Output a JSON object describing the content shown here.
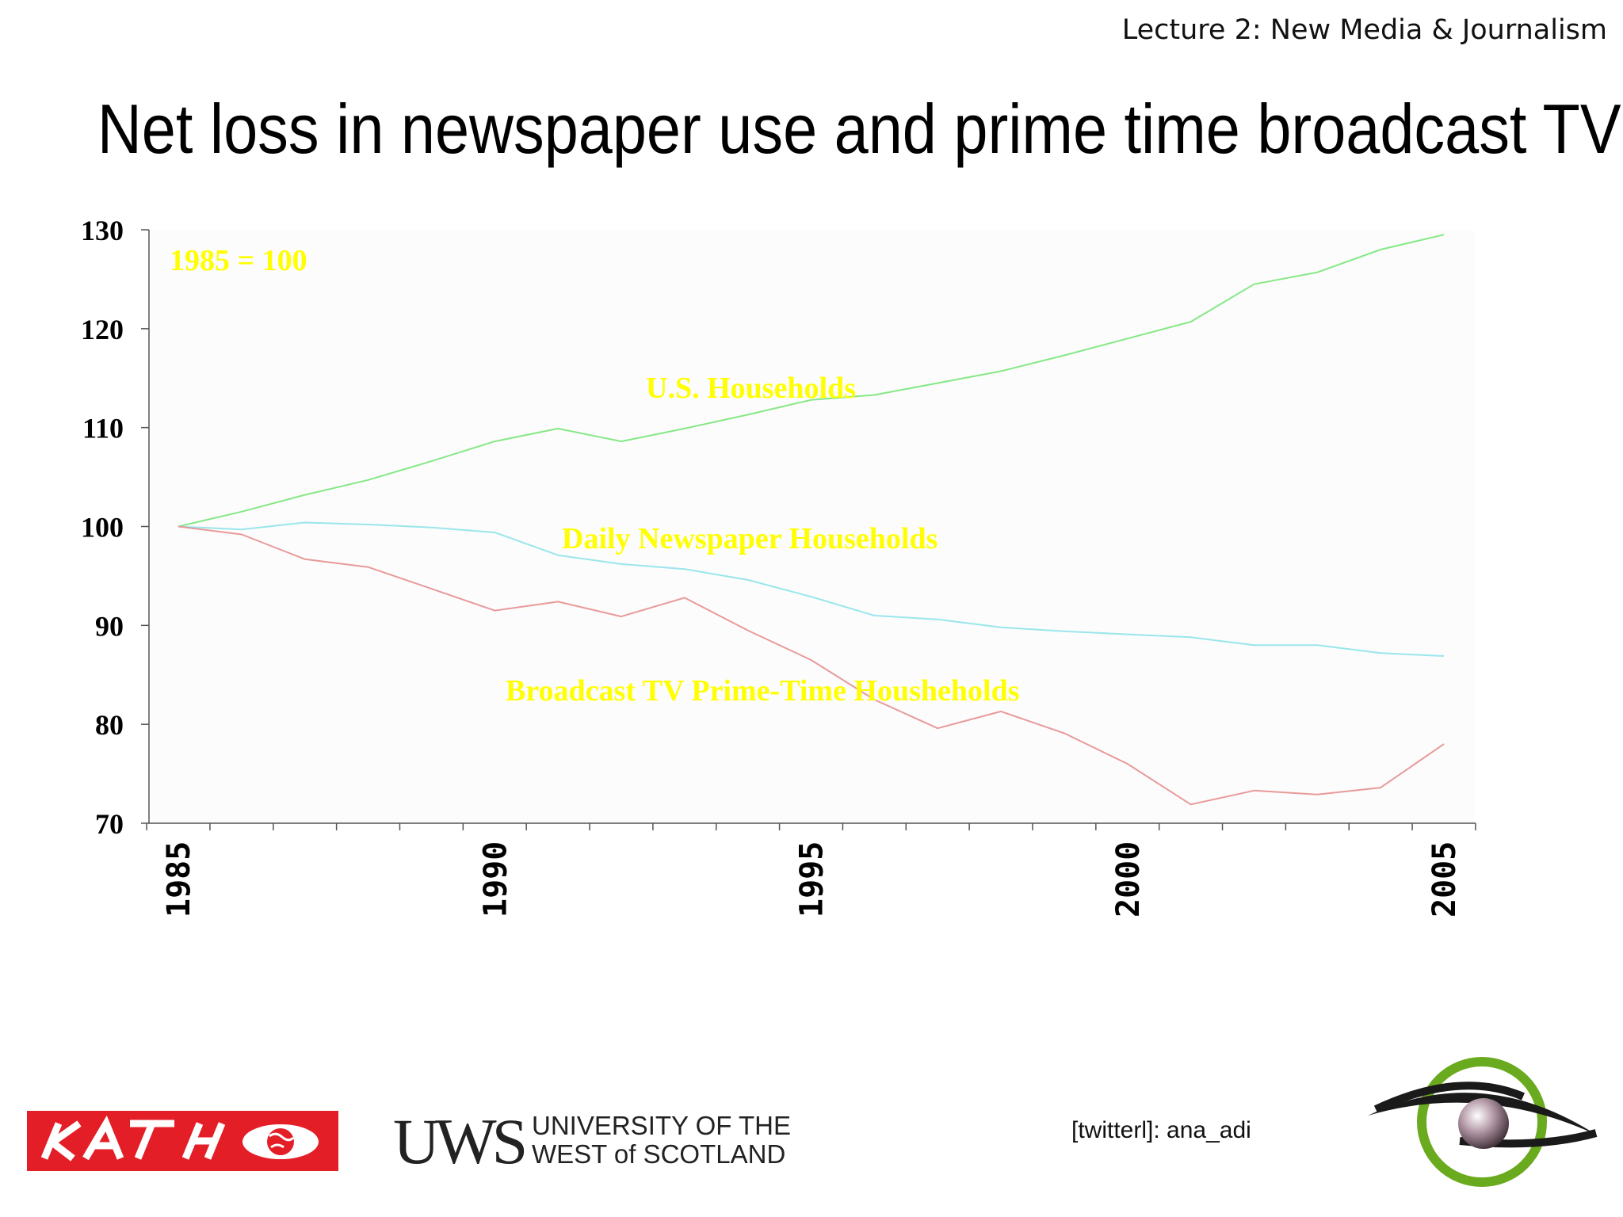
{
  "header": {
    "lecture": "Lecture 2: New Media & Journalism"
  },
  "title": "Net loss in newspaper use and prime time broadcast TV",
  "chart_data": {
    "type": "line",
    "x": [
      1985,
      1986,
      1987,
      1988,
      1989,
      1990,
      1991,
      1992,
      1993,
      1994,
      1995,
      1996,
      1997,
      1998,
      1999,
      2000,
      2001,
      2002,
      2003,
      2004,
      2005
    ],
    "series": [
      {
        "name": "U.S. Households",
        "color": "#86e886",
        "values": [
          100,
          101.5,
          103.2,
          104.7,
          106.6,
          108.6,
          109.9,
          108.6,
          109.9,
          111.3,
          112.8,
          113.3,
          114.5,
          115.7,
          117.3,
          119,
          120.7,
          124.5,
          125.7,
          128,
          129.5
        ]
      },
      {
        "name": "Daily Newspaper Households",
        "color": "#99e6ec",
        "values": [
          100,
          99.7,
          100.4,
          100.2,
          99.9,
          99.4,
          97.1,
          96.2,
          95.7,
          94.6,
          92.9,
          91,
          90.6,
          89.8,
          89.4,
          89.1,
          88.8,
          88,
          88,
          87.2,
          86.9
        ]
      },
      {
        "name": "Broadcast TV Prime-Time Housheholds",
        "color": "#e89a9a",
        "values": [
          100,
          99.2,
          96.7,
          95.9,
          93.7,
          91.5,
          92.4,
          90.9,
          92.8,
          89.5,
          86.5,
          82.5,
          79.6,
          81.3,
          79.1,
          76,
          71.9,
          73.3,
          72.9,
          73.6,
          78
        ]
      }
    ],
    "annotation": "1985 = 100",
    "y_ticks": [
      70,
      80,
      90,
      100,
      110,
      120,
      130
    ],
    "x_tick_labels": [
      "1985",
      "1990",
      "1995",
      "2000",
      "2005"
    ],
    "ylim": [
      70,
      130
    ],
    "xlim": [
      1985,
      2005
    ],
    "grid": false,
    "legend": "inline labels",
    "label_color": "#ffff00",
    "xlabel": "",
    "ylabel": ""
  },
  "footer": {
    "katho_logo_text": "KATHO",
    "uws_mark": "UWS",
    "uws_line1": "UNIVERSITY OF THE",
    "uws_line2": "WEST of SCOTLAND",
    "twitter": "[twitterl]: ana_adi"
  },
  "colors": {
    "katho_red": "#e41e26",
    "eye_green": "#6aaa1e",
    "eye_dark": "#1a1a1a"
  }
}
